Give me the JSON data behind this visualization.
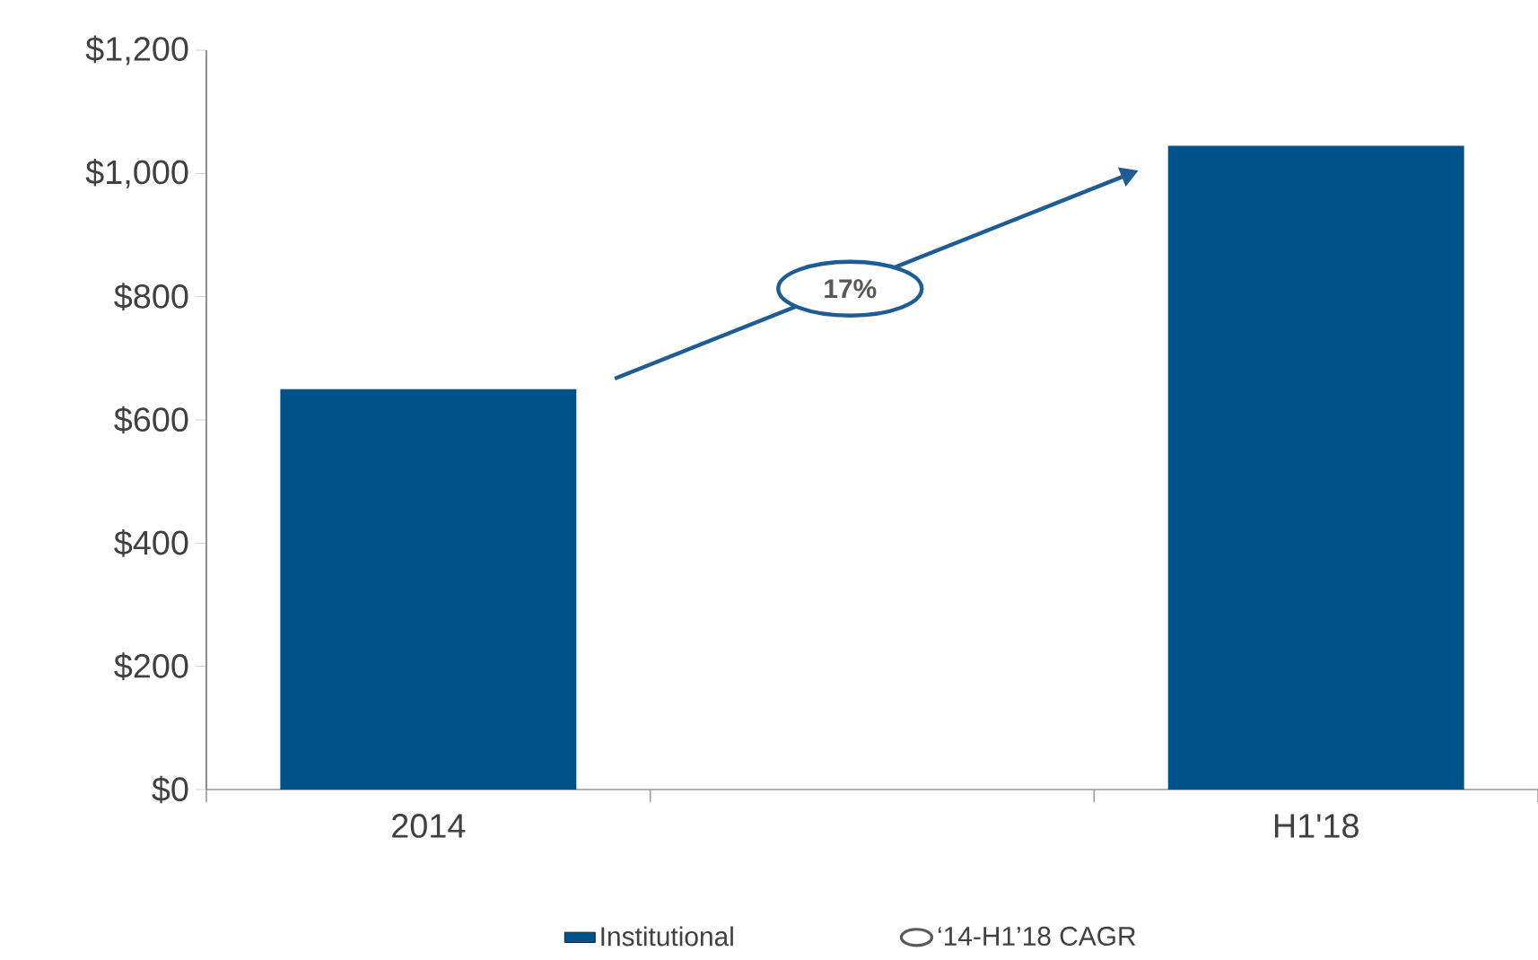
{
  "chart_data": {
    "type": "bar",
    "categories": [
      "2014",
      null,
      "H1'18"
    ],
    "series": [
      {
        "name": "Institutional",
        "color": "#00538a",
        "values": [
          650,
          null,
          1045
        ]
      }
    ],
    "ylim": [
      0,
      1200
    ],
    "yticks": [
      {
        "value": 0,
        "label": "$0"
      },
      {
        "value": 200,
        "label": "$200"
      },
      {
        "value": 400,
        "label": "$400"
      },
      {
        "value": 600,
        "label": "$600"
      },
      {
        "value": 800,
        "label": "$800"
      },
      {
        "value": 1000,
        "label": "$1,000"
      },
      {
        "value": 1200,
        "label": "$1,200"
      }
    ],
    "annotations": [
      "17%",
      "‘14-H1’18 CAGR"
    ],
    "legend": "bottom",
    "grid": false
  }
}
